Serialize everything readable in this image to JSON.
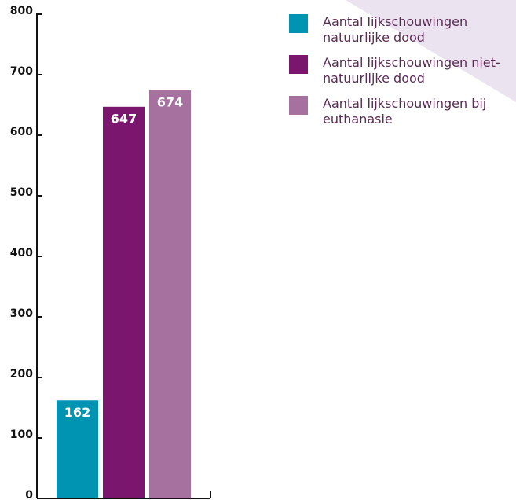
{
  "chart_data": {
    "type": "bar",
    "series": [
      {
        "name": "Aantal lijkschouwingen natuurlijke dood",
        "color": "#0093b2",
        "values": [
          162
        ]
      },
      {
        "name": "Aantal lijkschouwingen niet-natuurlijke dood",
        "color": "#7b166e",
        "values": [
          647
        ]
      },
      {
        "name": "Aantal lijkschouwingen bij euthanasie",
        "color": "#a6719f",
        "values": [
          674
        ]
      }
    ],
    "ylim": [
      0,
      800
    ],
    "yticks": [
      0,
      100,
      200,
      300,
      400,
      500,
      600,
      700,
      800
    ]
  }
}
